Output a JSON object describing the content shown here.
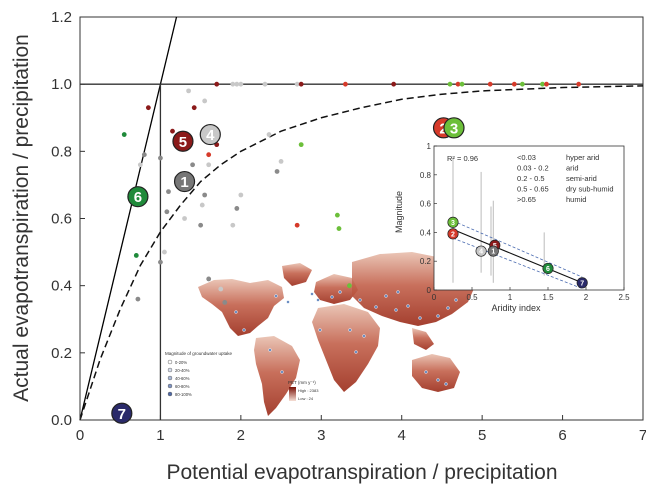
{
  "chart_data": {
    "type": "scatter",
    "xlabel": "Potential evapotranspiration / precipitation",
    "ylabel": "Actual evapotranspiration / precipitation",
    "xlim": [
      0,
      7
    ],
    "ylim": [
      0,
      1.2
    ],
    "xticks": [
      "0",
      "1",
      "2",
      "3",
      "4",
      "5",
      "6",
      "7"
    ],
    "yticks": [
      "0.0",
      "0.2",
      "0.4",
      "0.6",
      "0.8",
      "1.0",
      "1.2"
    ],
    "colors": {
      "dark_red": "#8b1a1a",
      "red": "#d63a2a",
      "green": "#6cbf3a",
      "dark_green": "#1f8a3a",
      "gray": "#8a8a8a",
      "light_gray": "#c8c8c8",
      "navy": "#2a2a6a"
    },
    "reference_lines": [
      {
        "name": "water_limit",
        "points": [
          [
            0,
            0
          ],
          [
            1,
            1
          ]
        ],
        "style": "solid"
      },
      {
        "name": "energy_limit",
        "points": [
          [
            1,
            0
          ],
          [
            1,
            1
          ],
          [
            7,
            1
          ]
        ],
        "style": "solid"
      }
    ],
    "budyko_curve": {
      "style": "dashed",
      "points": [
        [
          0,
          0
        ],
        [
          0.25,
          0.18
        ],
        [
          0.5,
          0.33
        ],
        [
          0.75,
          0.46
        ],
        [
          1,
          0.56
        ],
        [
          1.25,
          0.64
        ],
        [
          1.5,
          0.71
        ],
        [
          1.75,
          0.76
        ],
        [
          2,
          0.8
        ],
        [
          2.5,
          0.86
        ],
        [
          3,
          0.9
        ],
        [
          3.5,
          0.93
        ],
        [
          4,
          0.955
        ],
        [
          4.5,
          0.97
        ],
        [
          5,
          0.98
        ],
        [
          6,
          0.99
        ],
        [
          7,
          0.995
        ]
      ]
    },
    "numbered_markers": [
      {
        "label": "1",
        "x": 1.3,
        "y": 0.71,
        "color": "#777777"
      },
      {
        "label": "2",
        "x": 4.52,
        "y": 0.87,
        "color": "#d63a2a"
      },
      {
        "label": "3",
        "x": 4.65,
        "y": 0.87,
        "color": "#6cbf3a"
      },
      {
        "label": "4",
        "x": 1.62,
        "y": 0.85,
        "color": "#c8c8c8"
      },
      {
        "label": "5",
        "x": 1.28,
        "y": 0.83,
        "color": "#8b1a1a"
      },
      {
        "label": "6",
        "x": 0.72,
        "y": 0.665,
        "color": "#1f8a3a"
      },
      {
        "label": "7",
        "x": 0.52,
        "y": 0.02,
        "color": "#2a2a6a"
      }
    ],
    "points": [
      {
        "x": 0.55,
        "y": 0.85,
        "c": "#1f8a3a"
      },
      {
        "x": 0.85,
        "y": 0.93,
        "c": "#8b1a1a"
      },
      {
        "x": 0.8,
        "y": 0.79,
        "c": "#8a8a8a"
      },
      {
        "x": 0.75,
        "y": 0.76,
        "c": "#c8c8c8"
      },
      {
        "x": 0.7,
        "y": 0.49,
        "c": "#1f8a3a"
      },
      {
        "x": 0.72,
        "y": 0.36,
        "c": "#8a8a8a"
      },
      {
        "x": 1.0,
        "y": 0.47,
        "c": "#8a8a8a"
      },
      {
        "x": 1.05,
        "y": 0.5,
        "c": "#c8c8c8"
      },
      {
        "x": 1.08,
        "y": 0.62,
        "c": "#8a8a8a"
      },
      {
        "x": 1.0,
        "y": 0.78,
        "c": "#8a8a8a"
      },
      {
        "x": 1.1,
        "y": 0.68,
        "c": "#8a8a8a"
      },
      {
        "x": 1.2,
        "y": 0.72,
        "c": "#c8c8c8"
      },
      {
        "x": 1.3,
        "y": 0.6,
        "c": "#c8c8c8"
      },
      {
        "x": 1.15,
        "y": 0.86,
        "c": "#8b1a1a"
      },
      {
        "x": 1.42,
        "y": 0.93,
        "c": "#8b1a1a"
      },
      {
        "x": 1.35,
        "y": 0.98,
        "c": "#c8c8c8"
      },
      {
        "x": 1.55,
        "y": 0.95,
        "c": "#c8c8c8"
      },
      {
        "x": 1.4,
        "y": 0.76,
        "c": "#8a8a8a"
      },
      {
        "x": 1.6,
        "y": 0.79,
        "c": "#d63a2a"
      },
      {
        "x": 1.6,
        "y": 0.76,
        "c": "#c8c8c8"
      },
      {
        "x": 1.7,
        "y": 0.82,
        "c": "#8b1a1a"
      },
      {
        "x": 1.55,
        "y": 0.67,
        "c": "#8a8a8a"
      },
      {
        "x": 1.52,
        "y": 0.64,
        "c": "#c8c8c8"
      },
      {
        "x": 1.5,
        "y": 0.58,
        "c": "#8a8a8a"
      },
      {
        "x": 1.95,
        "y": 0.63,
        "c": "#8a8a8a"
      },
      {
        "x": 2.0,
        "y": 0.67,
        "c": "#c8c8c8"
      },
      {
        "x": 1.9,
        "y": 0.58,
        "c": "#c8c8c8"
      },
      {
        "x": 1.6,
        "y": 0.42,
        "c": "#8a8a8a"
      },
      {
        "x": 1.75,
        "y": 0.39,
        "c": "#c8c8c8"
      },
      {
        "x": 1.8,
        "y": 0.35,
        "c": "#8a8a8a"
      },
      {
        "x": 2.35,
        "y": 0.85,
        "c": "#c8c8c8"
      },
      {
        "x": 2.45,
        "y": 0.74,
        "c": "#8a8a8a"
      },
      {
        "x": 2.5,
        "y": 0.77,
        "c": "#c8c8c8"
      },
      {
        "x": 2.7,
        "y": 0.58,
        "c": "#d63a2a"
      },
      {
        "x": 2.75,
        "y": 0.82,
        "c": "#6cbf3a"
      },
      {
        "x": 3.2,
        "y": 0.61,
        "c": "#6cbf3a"
      },
      {
        "x": 3.22,
        "y": 0.57,
        "c": "#6cbf3a"
      },
      {
        "x": 3.35,
        "y": 0.4,
        "c": "#6cbf3a"
      },
      {
        "x": 1.7,
        "y": 1.0,
        "c": "#8b1a1a"
      },
      {
        "x": 1.9,
        "y": 1.0,
        "c": "#c8c8c8"
      },
      {
        "x": 1.95,
        "y": 1.0,
        "c": "#c8c8c8"
      },
      {
        "x": 2.0,
        "y": 1.0,
        "c": "#c8c8c8"
      },
      {
        "x": 2.3,
        "y": 1.0,
        "c": "#c8c8c8"
      },
      {
        "x": 2.7,
        "y": 1.0,
        "c": "#c8c8c8"
      },
      {
        "x": 2.75,
        "y": 1.0,
        "c": "#8b1a1a"
      },
      {
        "x": 3.3,
        "y": 1.0,
        "c": "#d63a2a"
      },
      {
        "x": 3.9,
        "y": 1.0,
        "c": "#8b1a1a"
      },
      {
        "x": 4.6,
        "y": 1.0,
        "c": "#6cbf3a"
      },
      {
        "x": 4.7,
        "y": 1.0,
        "c": "#d63a2a"
      },
      {
        "x": 4.75,
        "y": 1.0,
        "c": "#6cbf3a"
      },
      {
        "x": 5.1,
        "y": 1.0,
        "c": "#d63a2a"
      },
      {
        "x": 5.4,
        "y": 1.0,
        "c": "#d63a2a"
      },
      {
        "x": 5.5,
        "y": 1.0,
        "c": "#6cbf3a"
      },
      {
        "x": 5.75,
        "y": 1.0,
        "c": "#6cbf3a"
      },
      {
        "x": 5.8,
        "y": 1.0,
        "c": "#d63a2a"
      },
      {
        "x": 6.2,
        "y": 1.0,
        "c": "#d63a2a"
      }
    ],
    "inset": {
      "type": "scatter",
      "xlabel": "Aridity index",
      "ylabel": "Magnitude",
      "xlim": [
        0,
        2.5
      ],
      "ylim": [
        0,
        1
      ],
      "xticks": [
        "0",
        "0.5",
        "1",
        "1.5",
        "2",
        "2.5"
      ],
      "yticks": [
        "0",
        "0.2",
        "0.4",
        "0.6",
        "0.8",
        "1"
      ],
      "r2_label": "R² = 0.96",
      "classes": [
        {
          "range": "<0.03",
          "name": "hyper arid"
        },
        {
          "range": "0.03 - 0.2",
          "name": "arid"
        },
        {
          "range": "0.2 - 0.5",
          "name": "semi-arid"
        },
        {
          "range": "0.5 - 0.65",
          "name": "dry sub-humid"
        },
        {
          "range": ">0.65",
          "name": "humid"
        }
      ],
      "regression": [
        [
          0.25,
          0.42
        ],
        [
          1.95,
          0.05
        ]
      ],
      "conf_upper": [
        [
          0.25,
          0.48
        ],
        [
          1.95,
          0.09
        ]
      ],
      "conf_lower": [
        [
          0.25,
          0.36
        ],
        [
          1.95,
          0.01
        ]
      ],
      "error_bars": [
        {
          "x": 0.25,
          "lo": 0.05,
          "hi": 0.92
        },
        {
          "x": 0.62,
          "lo": 0.12,
          "hi": 0.82
        },
        {
          "x": 0.75,
          "lo": 0.1,
          "hi": 0.58
        },
        {
          "x": 0.78,
          "lo": 0.05,
          "hi": 0.62
        },
        {
          "x": 1.45,
          "lo": 0.1,
          "hi": 0.4
        }
      ],
      "markers": [
        {
          "label": "3",
          "x": 0.25,
          "y": 0.47,
          "color": "#6cbf3a"
        },
        {
          "label": "2",
          "x": 0.25,
          "y": 0.39,
          "color": "#d63a2a"
        },
        {
          "label": "5",
          "x": 0.8,
          "y": 0.31,
          "color": "#8b1a1a"
        },
        {
          "label": "1",
          "x": 0.78,
          "y": 0.27,
          "color": "#777777"
        },
        {
          "label": "4",
          "x": 0.62,
          "y": 0.27,
          "color": "#c8c8c8"
        },
        {
          "label": "6",
          "x": 1.5,
          "y": 0.15,
          "color": "#1f8a3a"
        },
        {
          "label": "7",
          "x": 1.95,
          "y": 0.05,
          "color": "#2a2a6a"
        }
      ]
    },
    "map": {
      "legend_title": "Magnitude of groundwater uptake",
      "legend_items": [
        "0-20%",
        "20-40%",
        "40-60%",
        "60-80%",
        "80-100%"
      ],
      "pet_title": "PET (mm y⁻¹)",
      "pet_high": "High : 2383",
      "pet_low": "Low : 24"
    }
  }
}
